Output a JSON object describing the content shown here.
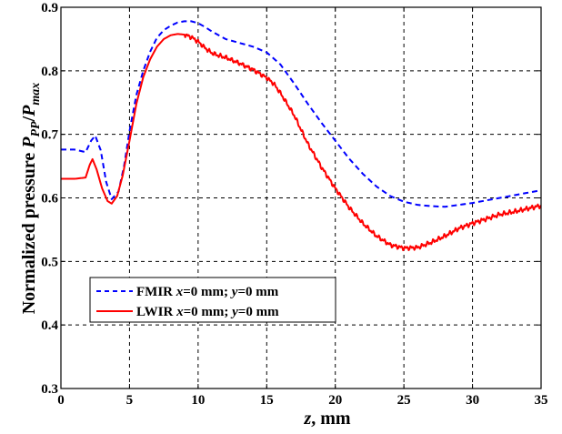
{
  "chart_data": {
    "type": "line",
    "xlabel_var": "z",
    "xlabel_unit": ", mm",
    "ylabel_prefix": "Normalized pressure ",
    "ylabel_num": "P",
    "ylabel_num_sub": "PP",
    "ylabel_slash": "/",
    "ylabel_den": "P",
    "ylabel_den_sub": "max",
    "xlim": [
      0,
      35
    ],
    "ylim": [
      0.3,
      0.9
    ],
    "xticks": [
      "0",
      "5",
      "10",
      "15",
      "20",
      "25",
      "30",
      "35"
    ],
    "yticks": [
      "0.3",
      "0.4",
      "0.5",
      "0.6",
      "0.7",
      "0.8",
      "0.9"
    ],
    "grid": true,
    "legend_position": "lower-left",
    "series": [
      {
        "name": "FMIR",
        "legend_parts": [
          "FMIR ",
          "x",
          "=0 mm; ",
          "y",
          "=0 mm"
        ],
        "color": "#0000ff",
        "style": "dashed",
        "points": [
          [
            0,
            0.676
          ],
          [
            1.0,
            0.676
          ],
          [
            1.8,
            0.672
          ],
          [
            2.2,
            0.69
          ],
          [
            2.5,
            0.698
          ],
          [
            2.9,
            0.675
          ],
          [
            3.3,
            0.625
          ],
          [
            3.7,
            0.598
          ],
          [
            4.2,
            0.61
          ],
          [
            4.6,
            0.65
          ],
          [
            5.0,
            0.705
          ],
          [
            5.5,
            0.762
          ],
          [
            6.0,
            0.8
          ],
          [
            6.5,
            0.83
          ],
          [
            7.0,
            0.852
          ],
          [
            7.5,
            0.864
          ],
          [
            8.0,
            0.871
          ],
          [
            8.5,
            0.876
          ],
          [
            9.0,
            0.878
          ],
          [
            9.5,
            0.878
          ],
          [
            10.0,
            0.875
          ],
          [
            10.5,
            0.869
          ],
          [
            11.0,
            0.862
          ],
          [
            11.5,
            0.856
          ],
          [
            12.0,
            0.85
          ],
          [
            13.0,
            0.844
          ],
          [
            14.0,
            0.838
          ],
          [
            15.0,
            0.829
          ],
          [
            16.0,
            0.81
          ],
          [
            17.0,
            0.78
          ],
          [
            18.0,
            0.748
          ],
          [
            19.0,
            0.718
          ],
          [
            20.0,
            0.69
          ],
          [
            21.0,
            0.662
          ],
          [
            22.0,
            0.638
          ],
          [
            23.0,
            0.618
          ],
          [
            24.0,
            0.603
          ],
          [
            25.0,
            0.594
          ],
          [
            26.0,
            0.589
          ],
          [
            27.0,
            0.587
          ],
          [
            28.0,
            0.586
          ],
          [
            29.0,
            0.589
          ],
          [
            30.0,
            0.592
          ],
          [
            31.0,
            0.596
          ],
          [
            32.0,
            0.6
          ],
          [
            33.0,
            0.604
          ],
          [
            34.0,
            0.608
          ],
          [
            35.0,
            0.612
          ]
        ]
      },
      {
        "name": "LWIR",
        "legend_parts": [
          "LWIR ",
          "x",
          "=0 mm; ",
          "y",
          "=0 mm"
        ],
        "color": "#ff0000",
        "style": "solid",
        "points": [
          [
            0,
            0.63
          ],
          [
            1.0,
            0.63
          ],
          [
            1.8,
            0.632
          ],
          [
            2.1,
            0.652
          ],
          [
            2.3,
            0.661
          ],
          [
            2.6,
            0.645
          ],
          [
            3.0,
            0.615
          ],
          [
            3.4,
            0.595
          ],
          [
            3.7,
            0.591
          ],
          [
            4.1,
            0.603
          ],
          [
            4.5,
            0.635
          ],
          [
            5.0,
            0.69
          ],
          [
            5.5,
            0.748
          ],
          [
            6.0,
            0.79
          ],
          [
            6.5,
            0.818
          ],
          [
            7.0,
            0.838
          ],
          [
            7.5,
            0.85
          ],
          [
            8.0,
            0.856
          ],
          [
            8.5,
            0.858
          ],
          [
            9.0,
            0.857
          ],
          [
            9.5,
            0.853
          ],
          [
            10.0,
            0.846
          ],
          [
            10.5,
            0.836
          ],
          [
            11.0,
            0.828
          ],
          [
            11.5,
            0.824
          ],
          [
            12.0,
            0.821
          ],
          [
            13.0,
            0.812
          ],
          [
            14.0,
            0.802
          ],
          [
            15.0,
            0.789
          ],
          [
            15.5,
            0.78
          ],
          [
            16.0,
            0.765
          ],
          [
            17.0,
            0.73
          ],
          [
            18.0,
            0.685
          ],
          [
            19.0,
            0.648
          ],
          [
            20.0,
            0.615
          ],
          [
            21.0,
            0.585
          ],
          [
            22.0,
            0.56
          ],
          [
            23.0,
            0.54
          ],
          [
            24.0,
            0.526
          ],
          [
            25.0,
            0.521
          ],
          [
            26.0,
            0.522
          ],
          [
            27.0,
            0.53
          ],
          [
            28.0,
            0.54
          ],
          [
            29.0,
            0.552
          ],
          [
            30.0,
            0.56
          ],
          [
            31.0,
            0.567
          ],
          [
            32.0,
            0.574
          ],
          [
            33.0,
            0.578
          ],
          [
            34.0,
            0.583
          ],
          [
            35.0,
            0.588
          ]
        ]
      }
    ]
  }
}
